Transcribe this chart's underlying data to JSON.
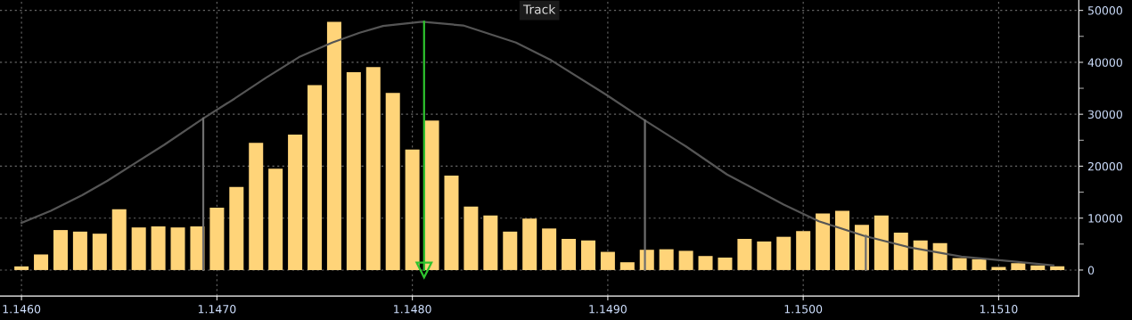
{
  "chart_data": {
    "type": "bar",
    "xlim": [
      1.14589,
      1.15141
    ],
    "xticks": [
      {
        "value": 1.146,
        "label": "1.1460"
      },
      {
        "value": 1.147,
        "label": "1.1470"
      },
      {
        "value": 1.148,
        "label": "1.1480"
      },
      {
        "value": 1.149,
        "label": "1.1490"
      },
      {
        "value": 1.15,
        "label": "1.1500"
      },
      {
        "value": 1.151,
        "label": "1.1510"
      }
    ],
    "ylim": [
      -5000,
      52000
    ],
    "yticks": [
      0,
      {
        "value": 5000,
        "label": null
      },
      10000,
      {
        "value": 15000,
        "label": null
      },
      20000,
      {
        "value": 25000,
        "label": null
      },
      30000,
      {
        "value": 35000,
        "label": null
      },
      40000,
      {
        "value": 45000,
        "label": null
      },
      50000
    ],
    "grid": true,
    "annotations": [
      "Track"
    ],
    "series": [
      {
        "color": "#ffd479",
        "x": [
          1.146,
          1.1461,
          1.1462,
          1.1463,
          1.1464,
          1.1465,
          1.1466,
          1.1467,
          1.1468,
          1.1469,
          1.147,
          1.1471,
          1.1472,
          1.1473,
          1.1474,
          1.1475,
          1.1476,
          1.1477,
          1.1478,
          1.1479,
          1.148,
          1.1481,
          1.1482,
          1.1483,
          1.1484,
          1.1485,
          1.1486,
          1.1487,
          1.1488,
          1.1489,
          1.149,
          1.1491,
          1.1492,
          1.1493,
          1.1494,
          1.1495,
          1.1496,
          1.1497,
          1.1498,
          1.1499,
          1.15,
          1.1501,
          1.1502,
          1.1503,
          1.1504,
          1.1505,
          1.1506,
          1.1507,
          1.1508,
          1.1509,
          1.151,
          1.1511,
          1.1512,
          1.1513
        ],
        "values": [
          700,
          3000,
          7700,
          7400,
          7000,
          11700,
          8200,
          8400,
          8200,
          8400,
          12000,
          16000,
          24500,
          19500,
          26100,
          35600,
          47800,
          38100,
          39100,
          34100,
          23200,
          28800,
          18200,
          12200,
          10500,
          7400,
          9900,
          8000,
          6000,
          5700,
          3500,
          1500,
          3900,
          4000,
          3700,
          2700,
          2400,
          6000,
          5500,
          6400,
          7500,
          10900,
          11400,
          8700,
          10500,
          7200,
          5700,
          5200,
          2300,
          2100,
          600,
          1300,
          900,
          700
        ]
      },
      {
        "type": "line",
        "color": "#555555",
        "x": [
          1.146,
          1.14615,
          1.14631,
          1.14644,
          1.14657,
          1.14673,
          1.14693,
          1.14709,
          1.14725,
          1.14742,
          1.14759,
          1.14773,
          1.14785,
          1.14805,
          1.14826,
          1.14853,
          1.14871,
          1.14899,
          1.14919,
          1.1494,
          1.14961,
          1.14972,
          1.1499,
          1.15008,
          1.15031,
          1.15054,
          1.15081,
          1.15109,
          1.15128
        ],
        "values": [
          9100,
          11400,
          14400,
          17200,
          20300,
          24100,
          29200,
          33000,
          37000,
          41000,
          43800,
          45700,
          47000,
          47800,
          47100,
          43800,
          40400,
          33800,
          28800,
          23800,
          18400,
          16200,
          12600,
          9400,
          6600,
          4400,
          2600,
          1600,
          900
        ]
      },
      {
        "type": "line",
        "color": "#6e6e6e",
        "x": [
          1.14693,
          1.14693
        ],
        "values": [
          0,
          29200
        ]
      },
      {
        "type": "line",
        "color": "#6e6e6e",
        "x": [
          1.14919,
          1.14919
        ],
        "values": [
          0,
          28800
        ]
      },
      {
        "type": "line",
        "color": "#6e6e6e",
        "x": [
          1.15032,
          1.15032
        ],
        "values": [
          0,
          6600
        ]
      },
      {
        "type": "line",
        "color": "#2ec42e",
        "marker": "triangle",
        "x": [
          1.14806,
          1.14806
        ],
        "values": [
          47800,
          0
        ]
      }
    ]
  }
}
